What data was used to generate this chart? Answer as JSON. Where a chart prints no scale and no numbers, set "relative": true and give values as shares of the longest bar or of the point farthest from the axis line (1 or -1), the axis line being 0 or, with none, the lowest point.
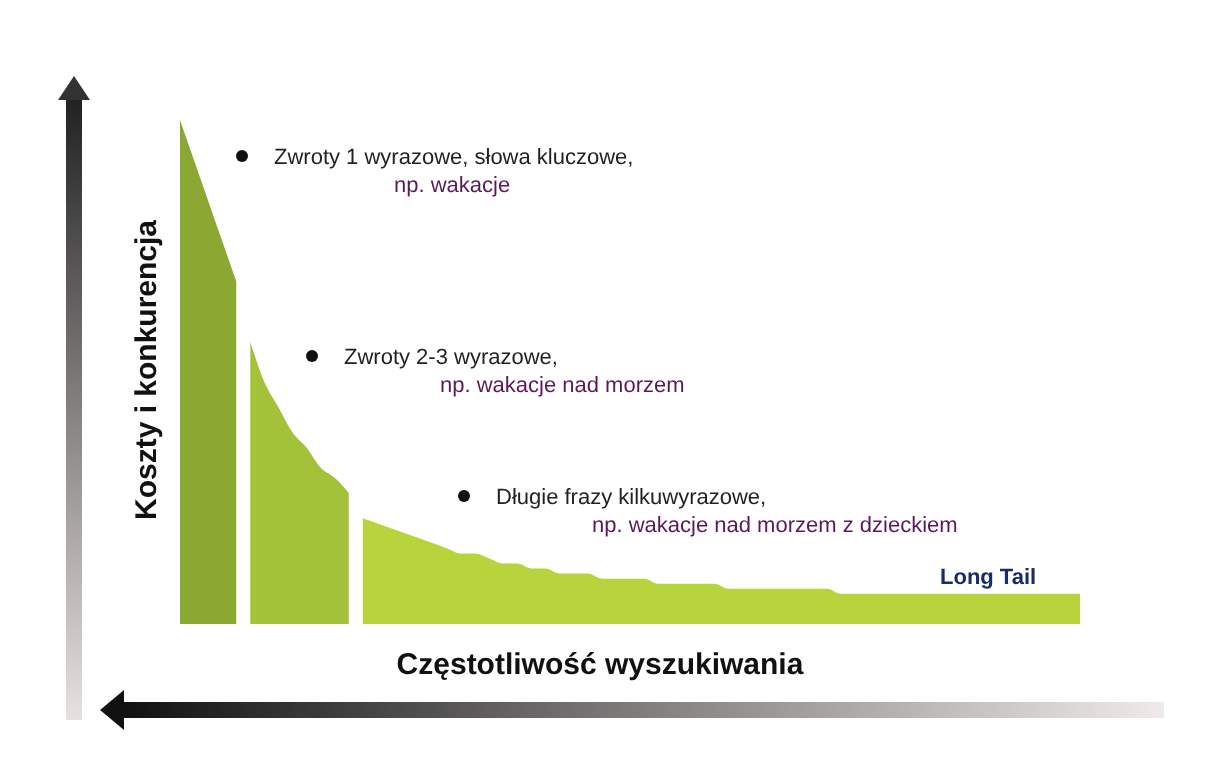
{
  "chart_data": {
    "type": "area",
    "relative": true,
    "xlabel": "Częstotliwość wyszukiwania",
    "ylabel": "Koszty i konkurencja",
    "grid": false,
    "categories": [
      null,
      null,
      null,
      null,
      null,
      null,
      null,
      null,
      null,
      null,
      null,
      null,
      null,
      null,
      null,
      null,
      null,
      null,
      null,
      null,
      null,
      null,
      null,
      null,
      null,
      null,
      null,
      null,
      null,
      null,
      null,
      null,
      null,
      null,
      null,
      null,
      null,
      null,
      null,
      null,
      null,
      null,
      null,
      null,
      null,
      null,
      null,
      null,
      null,
      null,
      null,
      null,
      null,
      null,
      null,
      null,
      null,
      null,
      null,
      null,
      null,
      null,
      null,
      null,
      null
    ],
    "series": [
      {
        "color": "#8aa832",
        "values": [
          1,
          0.92,
          0.84,
          0.76,
          0.68,
          null,
          null,
          null,
          null,
          null,
          null,
          null,
          null,
          null,
          null,
          null,
          null,
          null,
          null,
          null,
          null,
          null,
          null,
          null,
          null,
          null,
          null,
          null,
          null,
          null,
          null,
          null,
          null,
          null,
          null,
          null,
          null,
          null,
          null,
          null,
          null,
          null,
          null,
          null,
          null,
          null,
          null,
          null,
          null,
          null,
          null,
          null,
          null,
          null,
          null,
          null,
          null,
          null,
          null,
          null,
          null,
          null,
          null,
          null,
          null
        ]
      },
      {
        "color": "#a3c23a",
        "values": [
          null,
          null,
          null,
          null,
          null,
          0.56,
          0.48,
          0.43,
          0.38,
          0.35,
          0.31,
          0.29,
          0.26,
          null,
          null,
          null,
          null,
          null,
          null,
          null,
          null,
          null,
          null,
          null,
          null,
          null,
          null,
          null,
          null,
          null,
          null,
          null,
          null,
          null,
          null,
          null,
          null,
          null,
          null,
          null,
          null,
          null,
          null,
          null,
          null,
          null,
          null,
          null,
          null,
          null,
          null,
          null,
          null,
          null,
          null,
          null,
          null,
          null,
          null,
          null,
          null,
          null,
          null,
          null,
          null
        ]
      },
      {
        "color": "#b8d43c",
        "values": [
          null,
          null,
          null,
          null,
          null,
          null,
          null,
          null,
          null,
          null,
          null,
          null,
          null,
          0.21,
          0.2,
          0.19,
          0.18,
          0.17,
          0.16,
          0.15,
          0.14,
          0.14,
          0.13,
          0.12,
          0.12,
          0.11,
          0.11,
          0.1,
          0.1,
          0.1,
          0.09,
          0.09,
          0.09,
          0.09,
          0.08,
          0.08,
          0.08,
          0.08,
          0.08,
          0.07,
          0.07,
          0.07,
          0.07,
          0.07,
          0.07,
          0.07,
          0.07,
          0.06,
          0.06,
          0.06,
          0.06,
          0.06,
          0.06,
          0.06,
          0.06,
          0.06,
          0.06,
          0.06,
          0.06,
          0.06,
          0.06,
          0.06,
          0.06,
          0.06,
          0.06
        ]
      }
    ],
    "annotations": [
      "Zwroty 1 wyrazowe, słowa kluczowe,\nnp. wakacje",
      "Zwroty 2-3 wyrazowe,\nnp. wakacje nad morzem",
      "Długie frazy kilkuwyrazowe,\nnp. wakacje nad morzem z dzieckiem",
      "Long Tail"
    ]
  }
}
